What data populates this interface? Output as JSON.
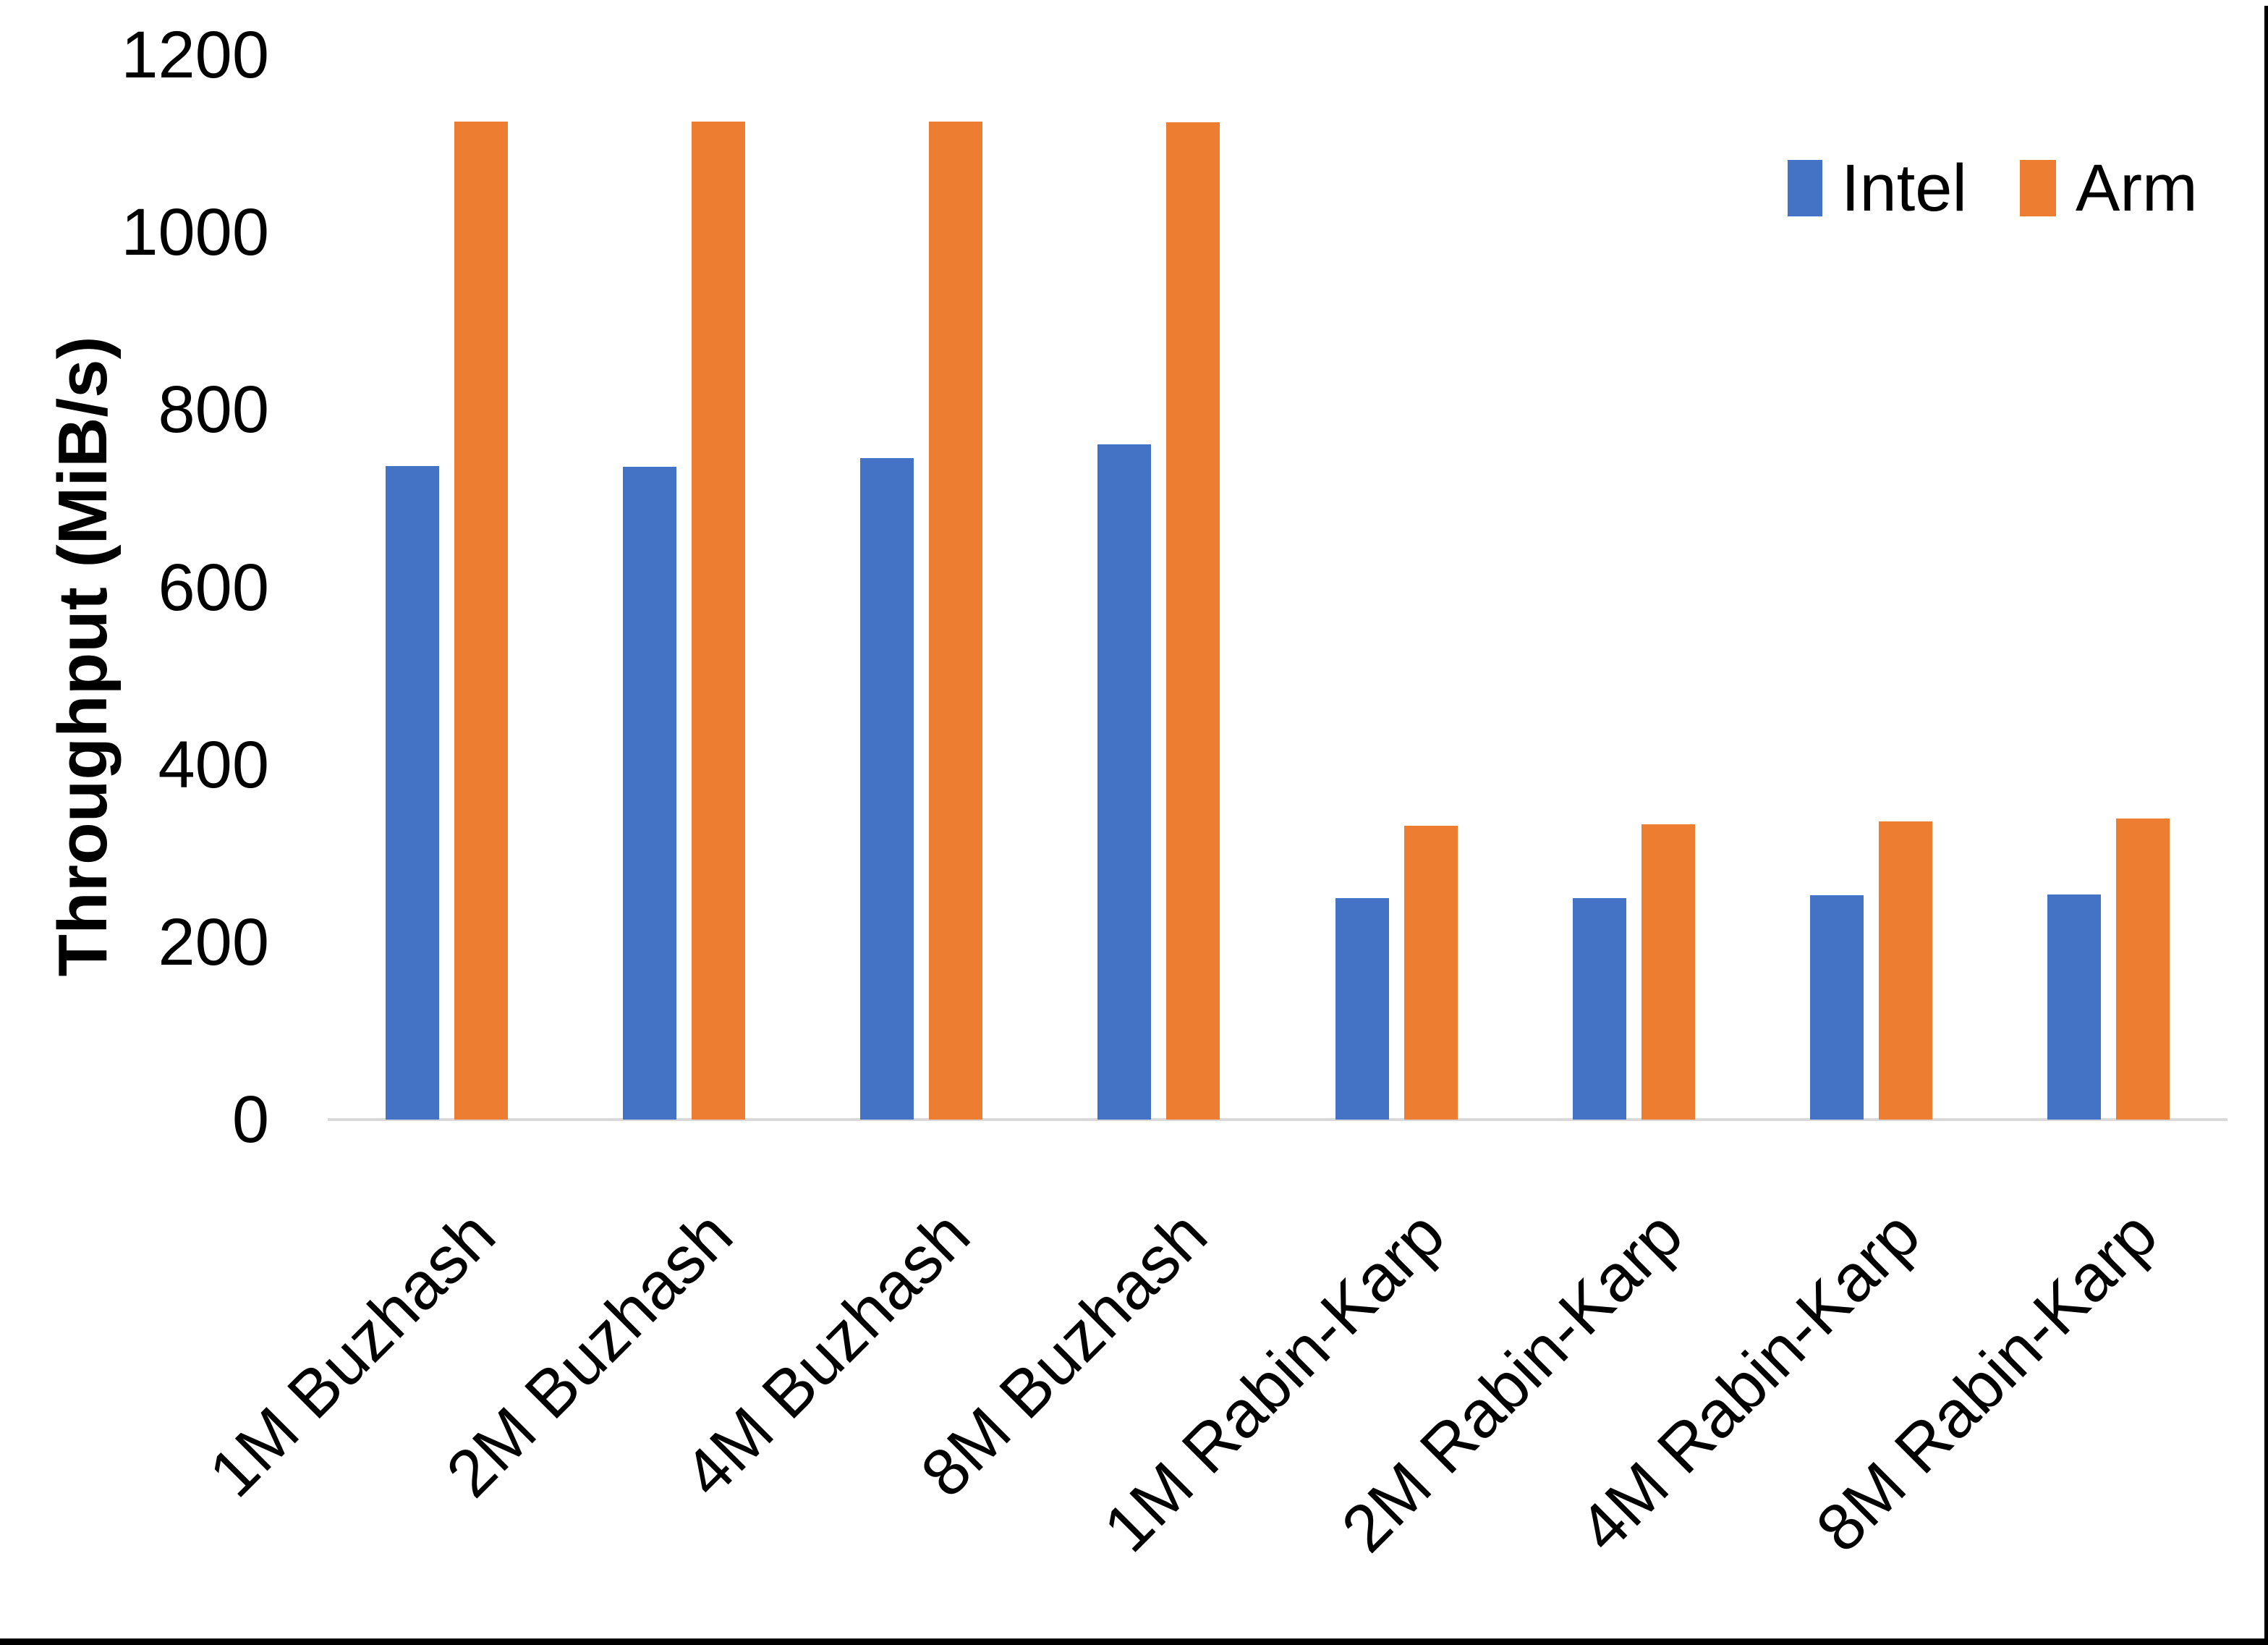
{
  "chart_data": {
    "type": "bar",
    "title": "",
    "xlabel": "",
    "ylabel": "Throughput (MiB/s)",
    "ylim": [
      0,
      1200
    ],
    "ytick_step": 200,
    "yticks": [
      "0",
      "200",
      "400",
      "600",
      "800",
      "1000",
      "1200"
    ],
    "grid": false,
    "legend_position": "top-right",
    "categories": [
      "1M Buzhash",
      "2M Buzhash",
      "4M Buzhash",
      "8M Buzhash",
      "1M Rabin-Karp",
      "2M Rabin-Karp",
      "4M Rabin-Karp",
      "8M Rabin-Karp"
    ],
    "series": [
      {
        "name": "Intel",
        "color": "#4472C4",
        "values": [
          737,
          736,
          746,
          761,
          250,
          250,
          253,
          254
        ]
      },
      {
        "name": "Arm",
        "color": "#ED7D31",
        "values": [
          1125,
          1125,
          1125,
          1124,
          331,
          333,
          336,
          339
        ]
      }
    ]
  },
  "colors": {
    "axis_line": "#D9D9D9",
    "text": "#000000",
    "background": "#FFFFFF",
    "border": "#000000"
  }
}
